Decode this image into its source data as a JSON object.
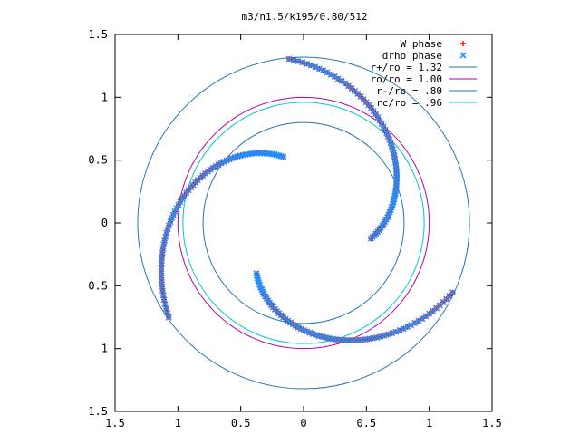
{
  "chart_data": {
    "type": "scatter",
    "title": "m3/n1.5/k195/0.80/512",
    "xlim": [
      -1.5,
      1.5
    ],
    "ylim": [
      -1.5,
      1.5
    ],
    "x_ticks": [
      -1.5,
      -1,
      -0.5,
      0,
      0.5,
      1,
      1.5
    ],
    "y_ticks": [
      -1.5,
      -1,
      -0.5,
      0,
      0.5,
      1,
      1.5
    ],
    "x_tick_labels": [
      "1.5",
      "1",
      "0.5",
      "0",
      "0.5",
      "1",
      "1.5"
    ],
    "y_tick_labels": [
      "1.5",
      "1",
      "0.5",
      "0",
      "0.5",
      "1",
      "1.5"
    ],
    "grid": false,
    "legend_position": "top-right",
    "series": [
      {
        "name": "W phase",
        "kind": "points",
        "marker": "plus",
        "color": "#ff0000",
        "arms": [
          {
            "r_start": 0.55,
            "r_end": 1.31,
            "theta_start": -13,
            "theta_end": 95
          },
          {
            "r_start": 0.55,
            "r_end": 1.31,
            "theta_start": 107,
            "theta_end": 215
          },
          {
            "r_start": 0.55,
            "r_end": 1.31,
            "theta_start": 227,
            "theta_end": 335
          }
        ]
      },
      {
        "name": "drho phase",
        "kind": "points",
        "marker": "cross",
        "color": "#1e90ff",
        "arms": [
          {
            "r_start": 0.55,
            "r_end": 1.31,
            "theta_start": -13,
            "theta_end": 95
          },
          {
            "r_start": 0.55,
            "r_end": 1.31,
            "theta_start": 107,
            "theta_end": 215
          },
          {
            "r_start": 0.55,
            "r_end": 1.31,
            "theta_start": 227,
            "theta_end": 335
          }
        ]
      },
      {
        "name": "r+/ro = 1.32",
        "kind": "circle",
        "radius": 1.32,
        "color": "#1f78b4"
      },
      {
        "name": "ro/ro = 1.00",
        "kind": "circle",
        "radius": 1.0,
        "color": "#b000b0"
      },
      {
        "name": "r-/ro = .80",
        "kind": "circle",
        "radius": 0.8,
        "color": "#1f78b4"
      },
      {
        "name": "rc/ro = .96",
        "kind": "circle",
        "radius": 0.96,
        "color": "#00c8c8"
      }
    ]
  }
}
